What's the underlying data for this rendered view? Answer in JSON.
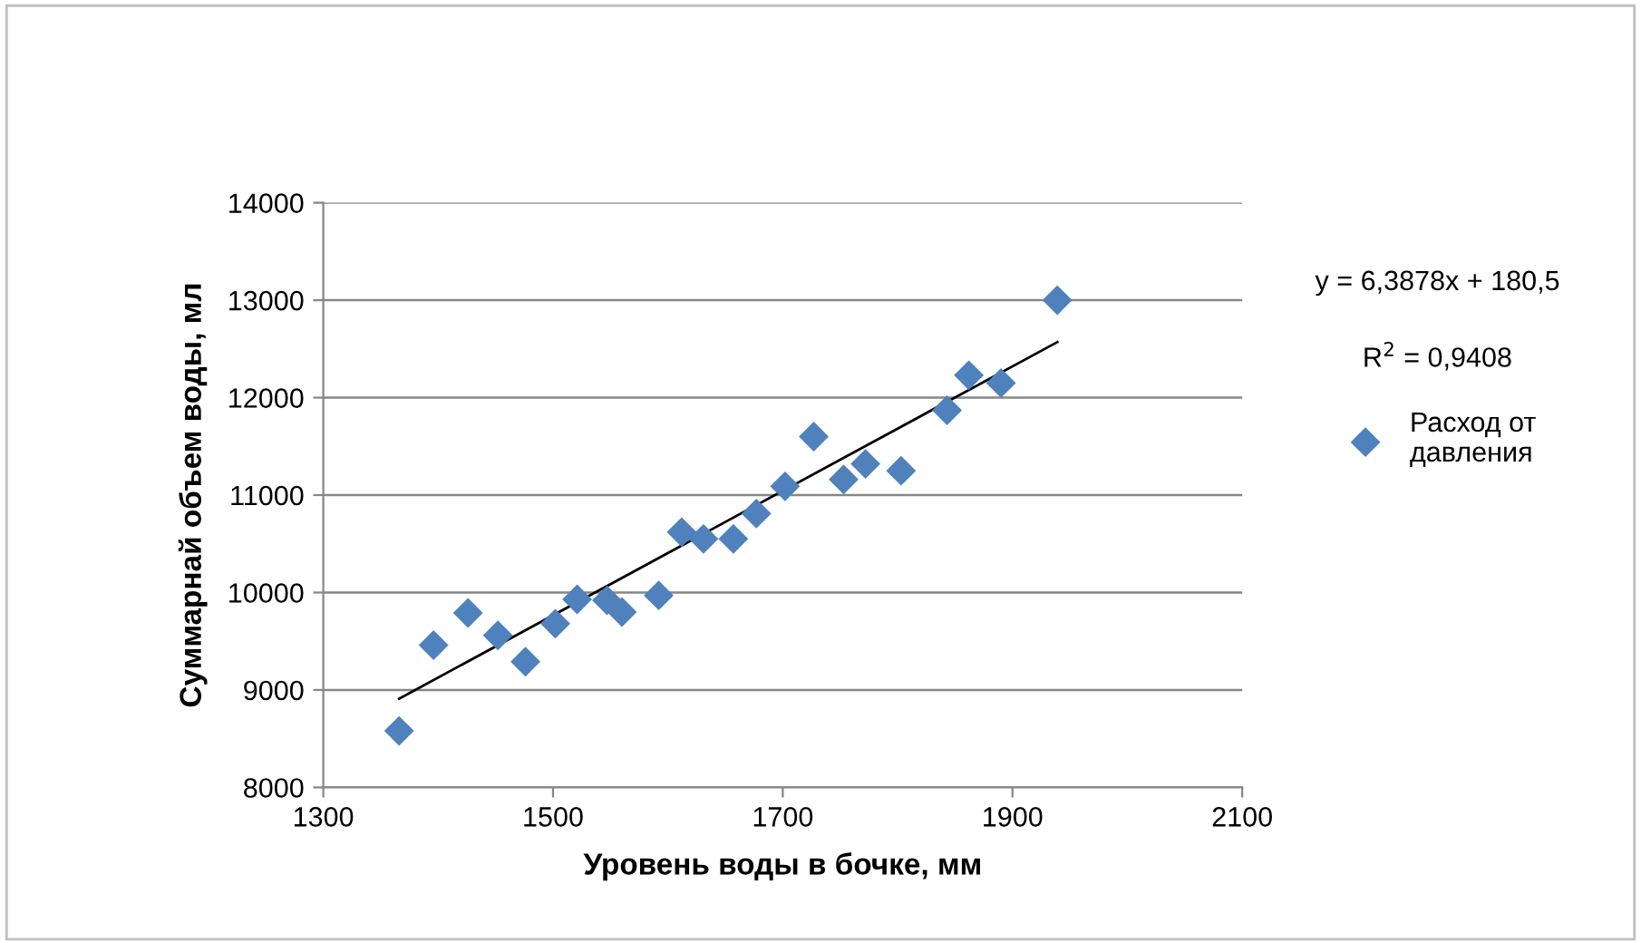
{
  "chart_data": {
    "type": "scatter",
    "xlabel": "Уровень воды в бочке, мм",
    "ylabel": "Суммарнай объем воды, мл",
    "xlim": [
      1300,
      2100
    ],
    "xticks": [
      1300,
      1500,
      1700,
      1900,
      2100
    ],
    "ylim": [
      8000,
      14000
    ],
    "yticks": [
      8000,
      9000,
      10000,
      11000,
      12000,
      13000,
      14000
    ],
    "grid": "y",
    "legend": "right",
    "marker": "diamond",
    "annotations": [
      "y = 6,3878x + 180,5",
      "R$^{2}$ = 0,9408"
    ],
    "series": [
      {
        "name": "Расход от давления",
        "color": "#4f81bd",
        "x": [
          1366,
          1396,
          1426,
          1452,
          1476,
          1502,
          1521,
          1547,
          1560,
          1592,
          1612,
          1631,
          1657,
          1677,
          1702,
          1727,
          1753,
          1772,
          1803,
          1843,
          1862,
          1890,
          1939
        ],
        "values": [
          8580,
          9460,
          9790,
          9560,
          9290,
          9680,
          9930,
          9920,
          9800,
          9970,
          10620,
          10550,
          10550,
          10810,
          11090,
          11600,
          11160,
          11320,
          11250,
          11870,
          12230,
          12150,
          13000
        ]
      },
      {
        "type": "line",
        "color": "#000000",
        "line_style": "solid",
        "marker": "none",
        "x": [
          1366,
          1939
        ],
        "values": [
          8910,
          12570
        ]
      }
    ]
  }
}
